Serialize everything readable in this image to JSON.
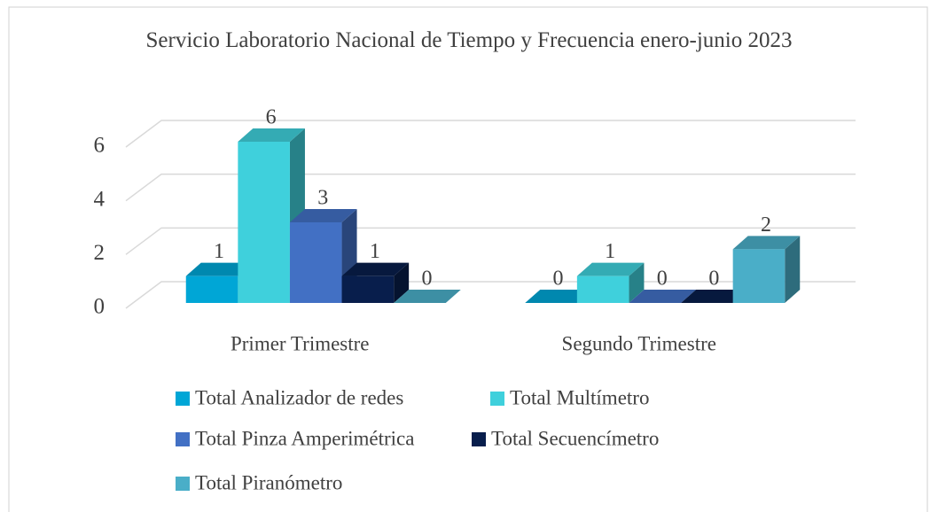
{
  "chart_data": {
    "type": "bar3d",
    "title": "Servicio Laboratorio Nacional de Tiempo y Frecuencia enero-junio 2023",
    "categories": [
      "Primer Trimestre",
      "Segundo Trimestre"
    ],
    "series": [
      {
        "name": "Total Analizador de redes",
        "color": "#00a6d6",
        "values": [
          1,
          0
        ]
      },
      {
        "name": "Total Multímetro",
        "color": "#3fd0dc",
        "values": [
          6,
          1
        ]
      },
      {
        "name": "Total Pinza Amperimétrica",
        "color": "#4270c4",
        "values": [
          3,
          0
        ]
      },
      {
        "name": "Total Secuencímetro",
        "color": "#081e4c",
        "values": [
          1,
          0
        ]
      },
      {
        "name": "Total Piranómetro",
        "color": "#4aaec8",
        "values": [
          0,
          2
        ]
      }
    ],
    "ylim": [
      0,
      6
    ],
    "yticks": [
      0,
      2,
      4,
      6
    ],
    "grid": true
  }
}
